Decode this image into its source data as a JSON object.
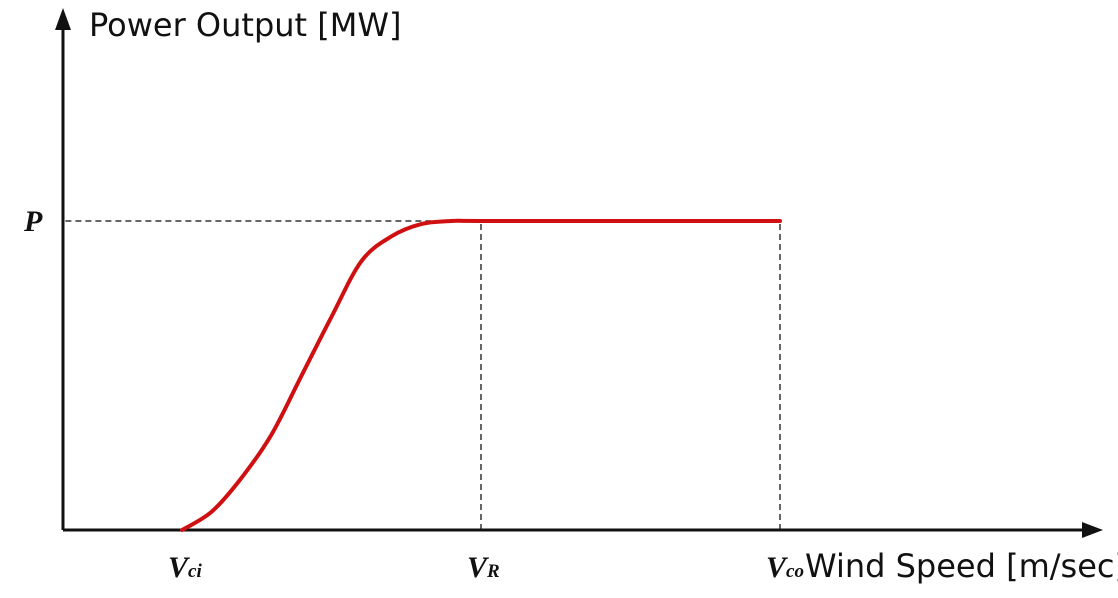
{
  "chart_data": {
    "type": "line",
    "title": "",
    "ylabel": "Power Output [MW]",
    "xlabel": "Wind Speed [m/sec]",
    "colors": {
      "curve": "#d01010",
      "axis": "#111111",
      "guide": "#333333"
    },
    "x_ticks": [
      {
        "main": "V",
        "sub": "ci",
        "x": 0
      },
      {
        "main": "V",
        "sub": "R",
        "x": 1
      },
      {
        "main": "V",
        "sub": "co",
        "x": 2
      }
    ],
    "y_ticks": [
      {
        "label": "P",
        "y": 1
      }
    ],
    "series": [
      {
        "values": [
          [
            0.0,
            0.0
          ],
          [
            0.1,
            0.06
          ],
          [
            0.2,
            0.17
          ],
          [
            0.3,
            0.31
          ],
          [
            0.4,
            0.5
          ],
          [
            0.5,
            0.69
          ],
          [
            0.6,
            0.87
          ],
          [
            0.7,
            0.95
          ],
          [
            0.8,
            0.99
          ],
          [
            0.9,
            1.0
          ],
          [
            1.0,
            1.0
          ],
          [
            1.5,
            1.0
          ],
          [
            2.0,
            1.0
          ]
        ]
      }
    ],
    "guides": [
      {
        "from": [
          -0.39,
          1
        ],
        "to": [
          1,
          1
        ]
      },
      {
        "from": [
          1,
          0
        ],
        "to": [
          1,
          1
        ]
      },
      {
        "from": [
          2,
          0
        ],
        "to": [
          2,
          1
        ]
      }
    ]
  }
}
